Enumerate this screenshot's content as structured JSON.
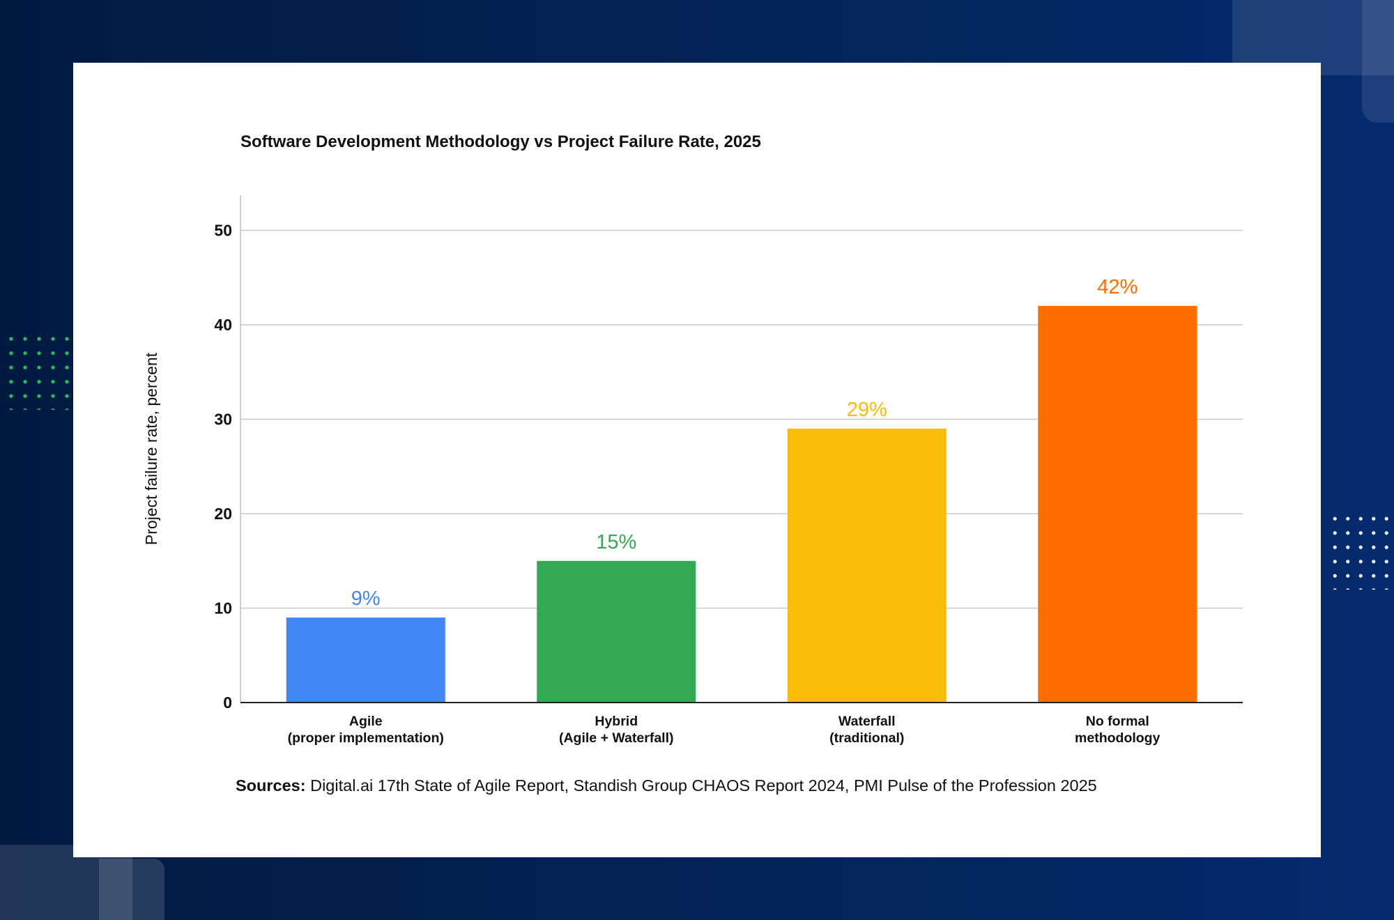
{
  "chart_data": {
    "type": "bar",
    "title": "Software Development Methodology vs Project Failure Rate, 2025",
    "xlabel": "",
    "ylabel": "Project failure rate, percent",
    "ylim": [
      0,
      53
    ],
    "yticks": [
      "0",
      "10",
      "20",
      "30",
      "40",
      "50"
    ],
    "grid": true,
    "categories": [
      [
        "Agile",
        "(proper implementation)"
      ],
      [
        "Hybrid",
        "(Agile + Waterfall)"
      ],
      [
        "Waterfall",
        "(traditional)"
      ],
      [
        "No formal",
        "methodology"
      ]
    ],
    "values": [
      9,
      15,
      29,
      42
    ],
    "data_labels": [
      "9%",
      "15%",
      "29%",
      "42%"
    ],
    "colors": [
      "#4285F4",
      "#34A853",
      "#FBBC05",
      "#FF6D00"
    ]
  },
  "sources": {
    "label": "Sources:",
    "text": " Digital.ai 17th State of Agile Report, Standish Group CHAOS Report 2024, PMI Pulse of the Profession 2025"
  }
}
